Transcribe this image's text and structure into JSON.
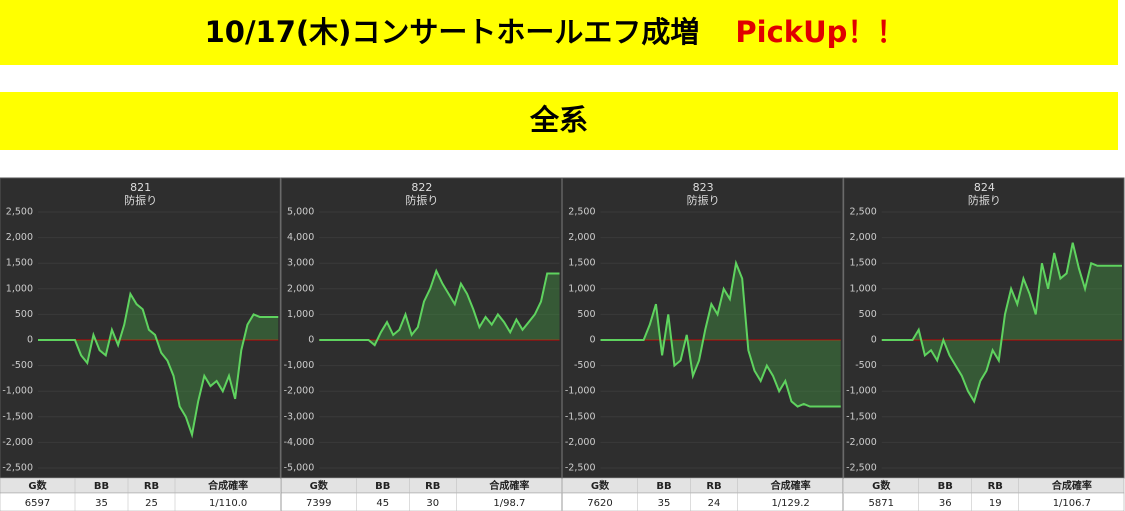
{
  "header": {
    "title": "10/17(木)コンサートホールエフ成増",
    "highlight": "PickUp！！",
    "subtitle": "全系"
  },
  "chart_data": [
    {
      "type": "line",
      "title": "821",
      "subtitle": "防振り",
      "color": "#5fd35f",
      "fill": "rgba(70,170,70,0.35)",
      "zero_line_color": "#cc0000",
      "ylim": [
        -2500,
        2500
      ],
      "yticks": [
        {
          "value": -2500,
          "label": "-2,500"
        },
        {
          "value": -2000,
          "label": "-2,000"
        },
        {
          "value": -1500,
          "label": "-1,500"
        },
        {
          "value": -1000,
          "label": "-1,000"
        },
        -500,
        0,
        500,
        {
          "value": 1000,
          "label": "1,000"
        },
        {
          "value": 1500,
          "label": "1,500"
        },
        {
          "value": 2000,
          "label": "2,000"
        },
        {
          "value": 2500,
          "label": "2,500"
        }
      ],
      "values": [
        0,
        0,
        0,
        0,
        0,
        0,
        0,
        -300,
        -450,
        100,
        -200,
        -300,
        200,
        -100,
        300,
        900,
        700,
        600,
        200,
        100,
        -250,
        -400,
        -700,
        -1300,
        -1500,
        -1850,
        -1200,
        -700,
        -900,
        -800,
        -1000,
        -700,
        -1150,
        -200,
        300,
        500,
        450,
        450,
        450,
        450
      ]
    },
    {
      "type": "line",
      "title": "822",
      "subtitle": "防振り",
      "color": "#5fd35f",
      "fill": "rgba(70,170,70,0.35)",
      "zero_line_color": "#cc0000",
      "ylim": [
        -5000,
        5000
      ],
      "yticks": [
        {
          "value": -5000,
          "label": "-5,000"
        },
        {
          "value": -4000,
          "label": "-4,000"
        },
        {
          "value": -3000,
          "label": "-3,000"
        },
        {
          "value": -2000,
          "label": "-2,000"
        },
        {
          "value": -1000,
          "label": "-1,000"
        },
        0,
        {
          "value": 1000,
          "label": "1,000"
        },
        {
          "value": 2000,
          "label": "2,000"
        },
        {
          "value": 3000,
          "label": "3,000"
        },
        {
          "value": 4000,
          "label": "4,000"
        },
        {
          "value": 5000,
          "label": "5,000"
        }
      ],
      "values": [
        0,
        0,
        0,
        0,
        0,
        0,
        0,
        0,
        0,
        -200,
        300,
        700,
        200,
        400,
        1000,
        200,
        500,
        1500,
        2000,
        2700,
        2200,
        1800,
        1400,
        2200,
        1800,
        1200,
        500,
        900,
        600,
        1000,
        700,
        300,
        800,
        400,
        700,
        1000,
        1500,
        2600,
        2600,
        2600
      ]
    },
    {
      "type": "line",
      "title": "823",
      "subtitle": "防振り",
      "color": "#5fd35f",
      "fill": "rgba(70,170,70,0.35)",
      "zero_line_color": "#cc0000",
      "ylim": [
        -2500,
        2500
      ],
      "yticks": [
        {
          "value": -2500,
          "label": "-2,500"
        },
        {
          "value": -2000,
          "label": "-2,000"
        },
        {
          "value": -1500,
          "label": "-1,500"
        },
        {
          "value": -1000,
          "label": "-1,000"
        },
        -500,
        0,
        500,
        {
          "value": 1000,
          "label": "1,000"
        },
        {
          "value": 1500,
          "label": "1,500"
        },
        {
          "value": 2000,
          "label": "2,000"
        },
        {
          "value": 2500,
          "label": "2,500"
        }
      ],
      "values": [
        0,
        0,
        0,
        0,
        0,
        0,
        0,
        0,
        300,
        700,
        -300,
        500,
        -500,
        -400,
        100,
        -700,
        -400,
        200,
        700,
        500,
        1000,
        800,
        1500,
        1200,
        -200,
        -600,
        -800,
        -500,
        -700,
        -1000,
        -800,
        -1200,
        -1300,
        -1250,
        -1300,
        -1300,
        -1300,
        -1300,
        -1300,
        -1300
      ]
    },
    {
      "type": "line",
      "title": "824",
      "subtitle": "防振り",
      "color": "#5fd35f",
      "fill": "rgba(70,170,70,0.35)",
      "zero_line_color": "#cc0000",
      "ylim": [
        -2500,
        2500
      ],
      "yticks": [
        {
          "value": -2500,
          "label": "-2,500"
        },
        {
          "value": -2000,
          "label": "-2,000"
        },
        {
          "value": -1500,
          "label": "-1,500"
        },
        {
          "value": -1000,
          "label": "-1,000"
        },
        -500,
        0,
        500,
        {
          "value": 1000,
          "label": "1,000"
        },
        {
          "value": 1500,
          "label": "1,500"
        },
        {
          "value": 2000,
          "label": "2,000"
        },
        {
          "value": 2500,
          "label": "2,500"
        }
      ],
      "values": [
        0,
        0,
        0,
        0,
        0,
        0,
        200,
        -300,
        -200,
        -400,
        0,
        -300,
        -500,
        -700,
        -1000,
        -1200,
        -800,
        -600,
        -200,
        -400,
        500,
        1000,
        700,
        1200,
        900,
        500,
        1500,
        1000,
        1700,
        1200,
        1300,
        1900,
        1400,
        1000,
        1500,
        1450,
        1450,
        1450,
        1450,
        1450
      ]
    }
  ],
  "tables": [
    {
      "headers": [
        "G数",
        "BB",
        "RB",
        "合成確率"
      ],
      "row": [
        "6597",
        "35",
        "25",
        "1/110.0"
      ]
    },
    {
      "headers": [
        "G数",
        "BB",
        "RB",
        "合成確率"
      ],
      "row": [
        "7399",
        "45",
        "30",
        "1/98.7"
      ]
    },
    {
      "headers": [
        "G数",
        "BB",
        "RB",
        "合成確率"
      ],
      "row": [
        "7620",
        "35",
        "24",
        "1/129.2"
      ]
    },
    {
      "headers": [
        "G数",
        "BB",
        "RB",
        "合成確率"
      ],
      "row": [
        "5871",
        "36",
        "19",
        "1/106.7"
      ]
    }
  ]
}
